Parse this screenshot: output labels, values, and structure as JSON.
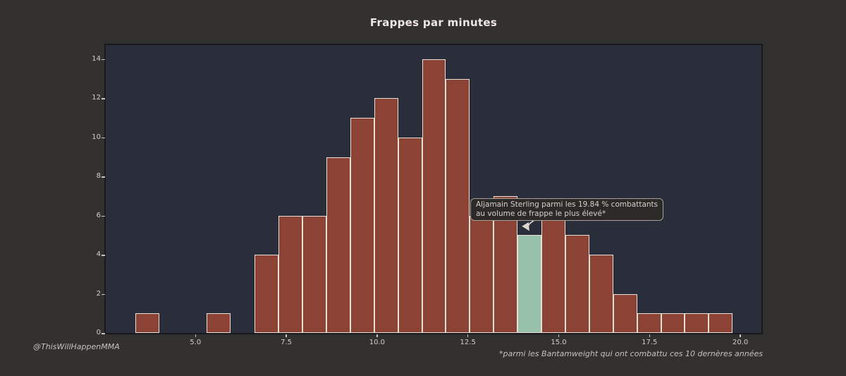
{
  "title": "Frappes par minutes",
  "credit": "@ThisWillHappenMMA",
  "footnote": "*parmi les Bantamweight qui ont combattu ces 10 dernères années",
  "annotation": {
    "line1": "Aljamain Sterling parmi les 19.84 % combattants",
    "line2": "au volume de frappe le plus élevé*"
  },
  "colors": {
    "page_bg": "#333130",
    "plot_bg": "#2a2e3a",
    "frame_border": "#18191c",
    "bar": "#8c4336",
    "bar_edge": "#e6e0d6",
    "highlight": "#95c2a9",
    "title_text": "#efe6e6",
    "tick_text": "#d3cdc6",
    "tick_mark": "#c8c2bb",
    "footer_text": "#c6c1ba",
    "tooltip_bg": "#2c2a28",
    "tooltip_border": "#a59f97",
    "tooltip_text": "#d6d0c8",
    "arrow": "#dcd6cd"
  },
  "chart_data": {
    "type": "bar",
    "subtype": "histogram",
    "title": "Frappes par minutes",
    "xlabel": "",
    "ylabel": "",
    "bin_start": 3.34,
    "bin_width": 0.658,
    "counts": [
      1,
      0,
      0,
      1,
      0,
      4,
      6,
      6,
      9,
      11,
      12,
      10,
      14,
      13,
      6,
      7,
      5,
      6,
      5,
      4,
      2,
      1,
      1,
      1,
      1
    ],
    "highlight_bin_index": 16,
    "xlim": [
      2.53,
      20.58
    ],
    "ylim": [
      0,
      14.72
    ],
    "xticks": [
      5.0,
      7.5,
      10.0,
      12.5,
      15.0,
      17.5,
      20.0
    ],
    "yticks": [
      0,
      2,
      4,
      6,
      8,
      10,
      12,
      14
    ],
    "grid": false,
    "legend": false,
    "annotation": "Aljamain Sterling parmi les 19.84 % combattants au volume de frappe le plus élevé*"
  }
}
